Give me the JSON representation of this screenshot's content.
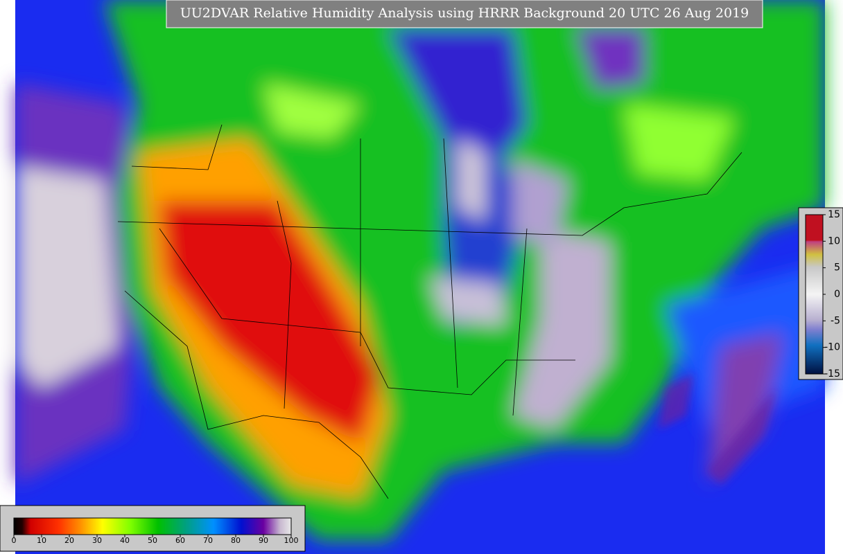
{
  "title": "UU2DVAR Relative Humidity Analysis using HRRR Background 20 UTC 26 Aug 2019",
  "colorbars": [
    {
      "lim": [
        0,
        100
      ],
      "ticks": [
        0,
        10,
        20,
        30,
        40,
        50,
        60,
        70,
        80,
        90,
        100
      ]
    },
    {
      "lim": [
        -15,
        15
      ],
      "ticks": [
        15,
        10,
        5,
        0,
        -5,
        -10,
        -15
      ]
    }
  ]
}
